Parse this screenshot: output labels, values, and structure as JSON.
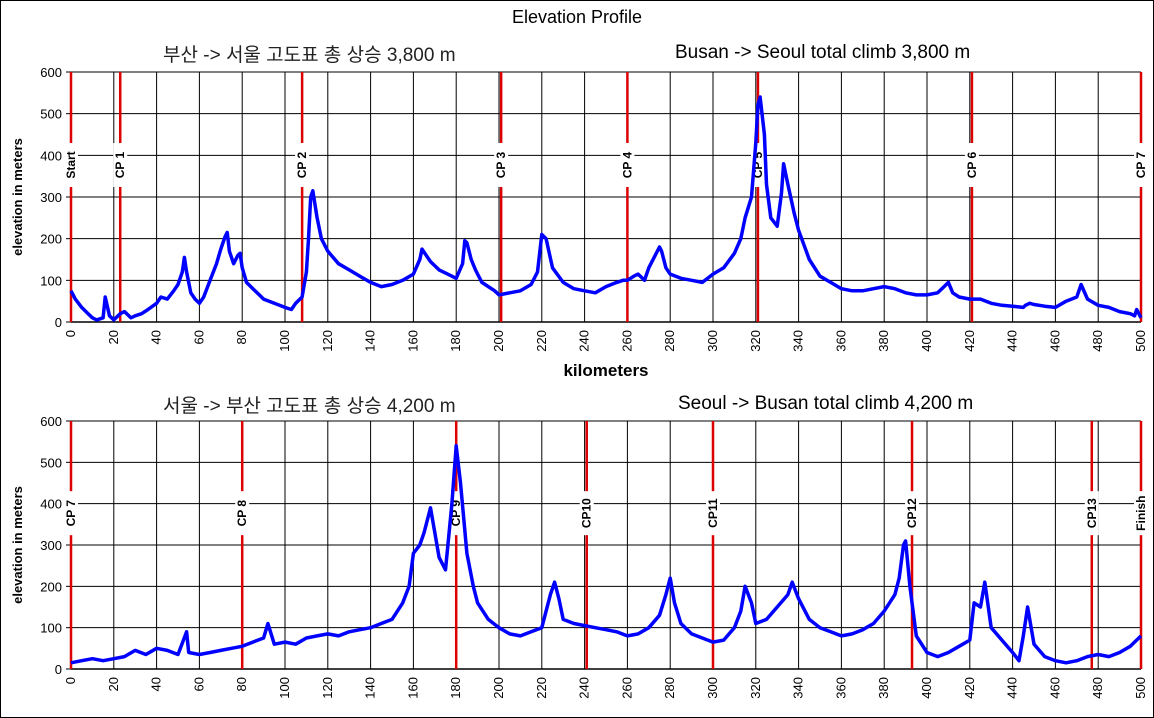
{
  "title": "Elevation Profile",
  "chart_data": [
    {
      "type": "line",
      "subtitle_ko": "부산 -> 서울  고도표  총 상승 3,800 m",
      "subtitle_en": "Busan -> Seoul  total climb 3,800 m",
      "xlabel": "kilometers",
      "ylabel": "elevation in meters",
      "xlim": [
        0,
        500
      ],
      "ylim": [
        0,
        600
      ],
      "xticks": [
        "0",
        "20",
        "40",
        "60",
        "80",
        "100",
        "120",
        "140",
        "160",
        "180",
        "200",
        "220",
        "240",
        "260",
        "280",
        "300",
        "320",
        "340",
        "360",
        "380",
        "400",
        "420",
        "440",
        "460",
        "480",
        "500"
      ],
      "yticks": [
        "0",
        "100",
        "200",
        "300",
        "400",
        "500",
        "600"
      ],
      "grid": true,
      "series_color": "#0000ff",
      "marker_color": "#dd0000",
      "checkpoints": [
        {
          "label": "Start",
          "km": 0
        },
        {
          "label": "CP 1",
          "km": 23
        },
        {
          "label": "CP 2",
          "km": 108
        },
        {
          "label": "CP 3",
          "km": 201
        },
        {
          "label": "CP 4",
          "km": 260
        },
        {
          "label": "CP 5",
          "km": 321
        },
        {
          "label": "CP 6",
          "km": 421
        },
        {
          "label": "CP 7",
          "km": 500
        }
      ],
      "x": [
        0,
        2,
        5,
        8,
        10,
        12,
        15,
        16,
        18,
        20,
        23,
        25,
        28,
        30,
        33,
        36,
        40,
        42,
        45,
        48,
        50,
        52,
        53,
        54,
        56,
        58,
        60,
        62,
        65,
        68,
        70,
        72,
        73,
        74,
        76,
        78,
        79,
        80,
        82,
        85,
        88,
        90,
        95,
        100,
        103,
        105,
        108,
        110,
        111,
        112,
        113,
        115,
        117,
        120,
        125,
        130,
        135,
        140,
        145,
        150,
        155,
        160,
        163,
        164,
        166,
        168,
        172,
        176,
        180,
        183,
        184,
        185,
        187,
        189,
        190,
        192,
        195,
        198,
        200,
        205,
        210,
        215,
        218,
        220,
        222,
        225,
        230,
        235,
        240,
        245,
        250,
        255,
        258,
        260,
        263,
        265,
        268,
        270,
        273,
        275,
        276,
        278,
        280,
        285,
        290,
        295,
        300,
        305,
        310,
        313,
        315,
        318,
        320,
        321,
        322,
        324,
        325,
        327,
        330,
        332,
        333,
        335,
        338,
        340,
        345,
        350,
        355,
        360,
        365,
        370,
        375,
        380,
        385,
        390,
        395,
        400,
        405,
        408,
        410,
        412,
        415,
        420,
        425,
        430,
        435,
        440,
        445,
        446,
        448,
        450,
        455,
        460,
        465,
        470,
        471,
        472,
        475,
        480,
        485,
        490,
        495,
        497,
        498,
        500
      ],
      "values": [
        75,
        55,
        35,
        20,
        10,
        5,
        10,
        60,
        15,
        5,
        20,
        25,
        10,
        15,
        20,
        30,
        45,
        60,
        55,
        75,
        90,
        120,
        155,
        120,
        70,
        55,
        45,
        60,
        100,
        140,
        175,
        205,
        215,
        170,
        140,
        160,
        165,
        130,
        95,
        80,
        65,
        55,
        45,
        35,
        30,
        45,
        60,
        120,
        200,
        300,
        315,
        250,
        200,
        170,
        140,
        125,
        110,
        95,
        85,
        90,
        100,
        115,
        150,
        175,
        160,
        145,
        125,
        115,
        105,
        140,
        195,
        190,
        150,
        125,
        115,
        95,
        85,
        75,
        65,
        70,
        75,
        90,
        120,
        210,
        200,
        130,
        95,
        80,
        75,
        70,
        85,
        95,
        100,
        100,
        110,
        115,
        100,
        130,
        160,
        180,
        170,
        130,
        115,
        105,
        100,
        95,
        115,
        130,
        165,
        200,
        250,
        300,
        430,
        520,
        540,
        450,
        330,
        250,
        230,
        310,
        380,
        330,
        260,
        220,
        150,
        110,
        95,
        80,
        75,
        75,
        80,
        85,
        80,
        70,
        65,
        65,
        70,
        85,
        95,
        70,
        60,
        55,
        55,
        45,
        40,
        38,
        35,
        40,
        45,
        42,
        38,
        35,
        50,
        60,
        75,
        90,
        55,
        40,
        35,
        25,
        20,
        15,
        30,
        10
      ]
    },
    {
      "type": "line",
      "subtitle_ko": "서울 -> 부산  고도표  총 상승 4,200 m",
      "subtitle_en": "Seoul -> Busan  total climb 4,200 m",
      "xlabel": "",
      "ylabel": "elevation in meters",
      "xlim": [
        0,
        500
      ],
      "ylim": [
        0,
        600
      ],
      "xticks": [
        "0",
        "20",
        "40",
        "60",
        "80",
        "100",
        "120",
        "140",
        "160",
        "180",
        "200",
        "220",
        "240",
        "260",
        "280",
        "300",
        "320",
        "340",
        "360",
        "380",
        "400",
        "420",
        "440",
        "460",
        "480",
        "500"
      ],
      "yticks": [
        "0",
        "100",
        "200",
        "300",
        "400",
        "500",
        "600"
      ],
      "grid": true,
      "series_color": "#0000ff",
      "marker_color": "#dd0000",
      "checkpoints": [
        {
          "label": "CP 7",
          "km": 0
        },
        {
          "label": "CP 8",
          "km": 80
        },
        {
          "label": "CP 9",
          "km": 180
        },
        {
          "label": "CP10",
          "km": 241
        },
        {
          "label": "CP11",
          "km": 300
        },
        {
          "label": "CP12",
          "km": 393
        },
        {
          "label": "CP13",
          "km": 477
        },
        {
          "label": "Finish",
          "km": 500
        }
      ],
      "x": [
        0,
        5,
        10,
        15,
        20,
        25,
        30,
        35,
        40,
        45,
        50,
        54,
        55,
        60,
        65,
        70,
        75,
        80,
        85,
        90,
        92,
        95,
        100,
        105,
        110,
        115,
        120,
        125,
        130,
        135,
        140,
        145,
        150,
        155,
        158,
        160,
        163,
        165,
        168,
        170,
        172,
        175,
        178,
        180,
        182,
        185,
        188,
        190,
        195,
        200,
        205,
        210,
        215,
        220,
        222,
        224,
        226,
        228,
        230,
        235,
        240,
        245,
        250,
        255,
        260,
        265,
        270,
        275,
        278,
        280,
        282,
        285,
        290,
        295,
        300,
        305,
        310,
        313,
        315,
        318,
        320,
        325,
        330,
        335,
        337,
        340,
        345,
        350,
        355,
        360,
        365,
        370,
        375,
        380,
        385,
        387,
        389,
        390,
        392,
        395,
        400,
        405,
        410,
        415,
        420,
        422,
        425,
        427,
        430,
        435,
        440,
        443,
        445,
        447,
        450,
        455,
        460,
        465,
        470,
        475,
        480,
        485,
        490,
        495,
        500
      ],
      "values": [
        15,
        20,
        25,
        20,
        25,
        30,
        45,
        35,
        50,
        45,
        35,
        90,
        40,
        35,
        40,
        45,
        50,
        55,
        65,
        75,
        110,
        60,
        65,
        60,
        75,
        80,
        85,
        80,
        90,
        95,
        100,
        110,
        120,
        160,
        200,
        280,
        300,
        330,
        390,
        330,
        270,
        240,
        400,
        540,
        450,
        280,
        200,
        160,
        120,
        100,
        85,
        80,
        90,
        100,
        140,
        180,
        210,
        170,
        120,
        110,
        105,
        100,
        95,
        90,
        80,
        85,
        100,
        130,
        180,
        220,
        160,
        110,
        85,
        75,
        65,
        70,
        100,
        140,
        200,
        160,
        110,
        120,
        150,
        180,
        210,
        170,
        120,
        100,
        90,
        80,
        85,
        95,
        110,
        140,
        180,
        220,
        300,
        310,
        200,
        80,
        40,
        30,
        40,
        55,
        70,
        160,
        150,
        210,
        100,
        70,
        40,
        20,
        80,
        150,
        60,
        30,
        20,
        15,
        20,
        30,
        35,
        30,
        40,
        55,
        80
      ]
    }
  ]
}
